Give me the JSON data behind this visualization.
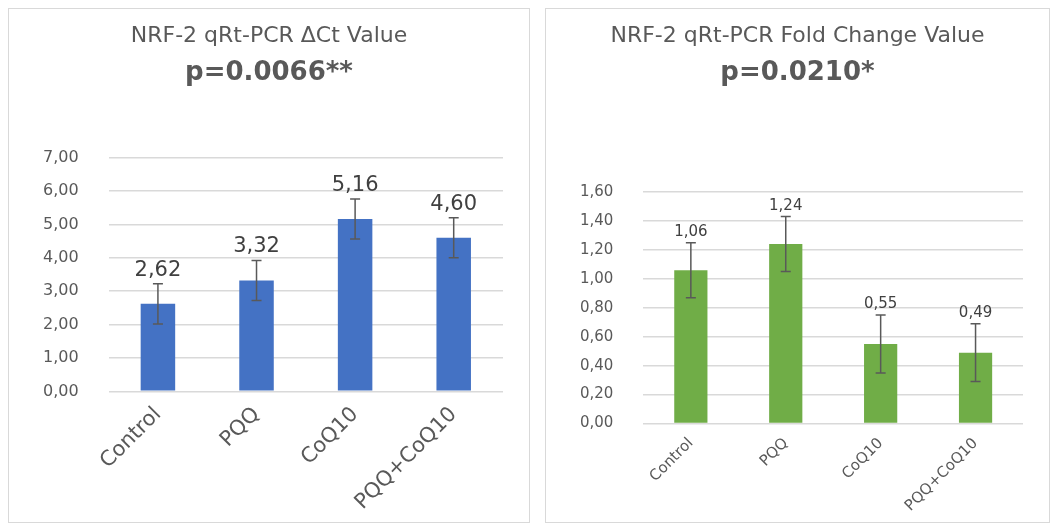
{
  "chart_data": [
    {
      "type": "bar",
      "title": "NRF-2 qRt-PCR ΔCt Value",
      "subtitle": "p=0.0066**",
      "categories": [
        "Control",
        "PQQ",
        "CoQ10",
        "PQQ+CoQ10"
      ],
      "values": [
        2.62,
        3.32,
        5.16,
        4.6
      ],
      "value_labels": [
        "2,62",
        "3,32",
        "5,16",
        "4,60"
      ],
      "errors": [
        0.6,
        0.6,
        0.6,
        0.6
      ],
      "color": "#4472c4",
      "ylim": [
        0,
        7
      ],
      "yticks": [
        {
          "value": 0,
          "label": "0,00"
        },
        {
          "value": 1,
          "label": "1,00"
        },
        {
          "value": 2,
          "label": "2,00"
        },
        {
          "value": 3,
          "label": "3,00"
        },
        {
          "value": 4,
          "label": "4,00"
        },
        {
          "value": 5,
          "label": "5,00"
        },
        {
          "value": 6,
          "label": "6,00"
        },
        {
          "value": 7,
          "label": "7,00"
        }
      ],
      "grid": "y"
    },
    {
      "type": "bar",
      "title": "NRF-2 qRt-PCR Fold Change Value",
      "subtitle": "p=0.0210*",
      "categories": [
        "Control",
        "PQQ",
        "CoQ10",
        "PQQ+CoQ10"
      ],
      "values": [
        1.06,
        1.24,
        0.55,
        0.49
      ],
      "value_labels": [
        "1,06",
        "1,24",
        "0,55",
        "0,49"
      ],
      "errors": [
        0.19,
        0.19,
        0.2,
        0.2
      ],
      "color": "#70ad47",
      "ylim": [
        0,
        1.6
      ],
      "yticks": [
        {
          "value": 0,
          "label": "0,00"
        },
        {
          "value": 0.2,
          "label": "0,20"
        },
        {
          "value": 0.4,
          "label": "0,40"
        },
        {
          "value": 0.6,
          "label": "0,60"
        },
        {
          "value": 0.8,
          "label": "0,80"
        },
        {
          "value": 1,
          "label": "1,00"
        },
        {
          "value": 1.2,
          "label": "1,20"
        },
        {
          "value": 1.4,
          "label": "1,40"
        },
        {
          "value": 1.6,
          "label": "1,60"
        }
      ],
      "grid": "y"
    }
  ]
}
